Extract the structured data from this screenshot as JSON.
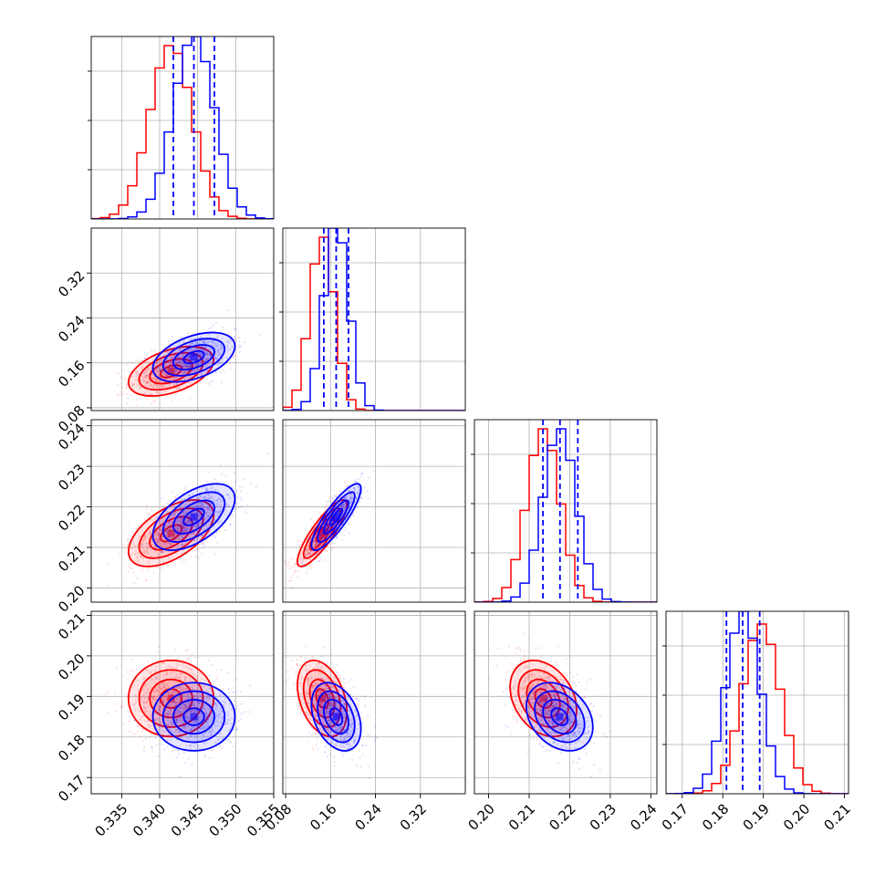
{
  "chart_data": {
    "type": "corner",
    "dims": [
      {
        "lim": [
          0.331,
          0.355
        ],
        "ticks": [
          0.335,
          0.34,
          0.345,
          0.35,
          0.355
        ],
        "tick_labels": [
          "0.335",
          "0.340",
          "0.345",
          "0.350",
          "0.355"
        ]
      },
      {
        "lim": [
          0.075,
          0.4
        ],
        "ticks": [
          0.08,
          0.16,
          0.24,
          0.32
        ],
        "tick_labels": [
          "0.08",
          "0.16",
          "0.24",
          "0.32"
        ]
      },
      {
        "lim": [
          0.1965,
          0.2415
        ],
        "ticks": [
          0.2,
          0.21,
          0.22,
          0.23,
          0.24
        ],
        "tick_labels": [
          "0.20",
          "0.21",
          "0.22",
          "0.23",
          "0.24"
        ]
      },
      {
        "lim": [
          0.166,
          0.211
        ],
        "ticks": [
          0.17,
          0.18,
          0.19,
          0.2,
          0.21
        ],
        "tick_labels": [
          "0.17",
          "0.18",
          "0.19",
          "0.20",
          "0.21"
        ]
      }
    ],
    "series": [
      {
        "color": "#ff0000",
        "mean": [
          0.3415,
          0.145,
          0.2135,
          0.1895
        ],
        "std": [
          0.0028,
          0.022,
          0.0041,
          0.0047
        ],
        "hist_max": [
          0.95,
          0.95,
          0.95,
          0.93
        ],
        "corr": {
          "1-0": 0.45,
          "2-0": 0.55,
          "2-1": 0.85,
          "3-0": 0.0,
          "3-1": -0.35,
          "3-2": -0.3
        }
      },
      {
        "color": "#0000ff",
        "mean": [
          0.3445,
          0.17,
          0.2175,
          0.185
        ],
        "std": [
          0.0027,
          0.022,
          0.0041,
          0.0042
        ],
        "hist_max": [
          1.0,
          1.0,
          0.95,
          1.0
        ],
        "corr": {
          "1-0": 0.45,
          "2-0": 0.55,
          "2-1": 0.85,
          "3-0": 0.0,
          "3-1": -0.35,
          "3-2": -0.3
        }
      }
    ],
    "quantile_lines": {
      "color": "#0000ff",
      "values": [
        [
          0.3418,
          0.3445,
          0.3472
        ],
        [
          0.148,
          0.17,
          0.192
        ],
        [
          0.2134,
          0.2176,
          0.222
        ],
        [
          0.1809,
          0.1849,
          0.1891
        ]
      ]
    },
    "grid": true
  }
}
